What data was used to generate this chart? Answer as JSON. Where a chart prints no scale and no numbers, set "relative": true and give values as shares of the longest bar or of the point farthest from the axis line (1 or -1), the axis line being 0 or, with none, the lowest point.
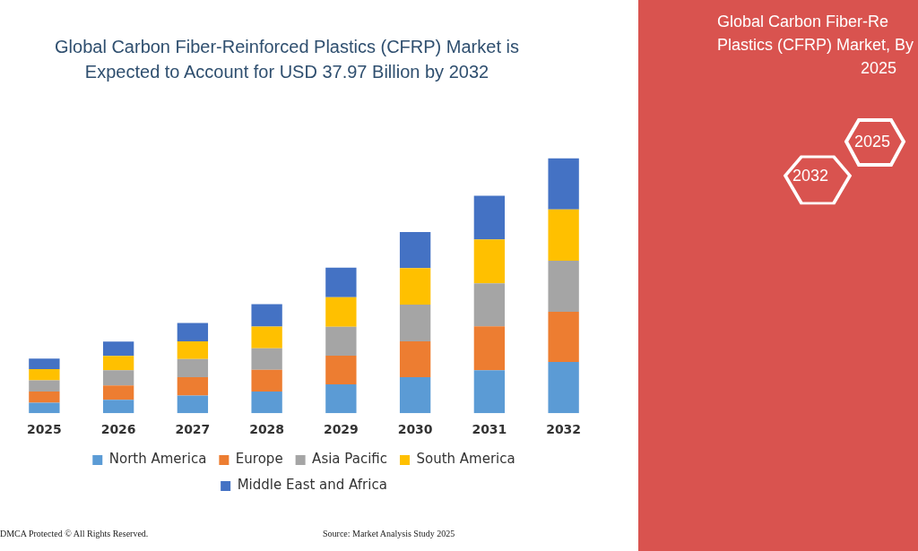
{
  "chart_data": {
    "type": "bar",
    "title": "Global Carbon Fiber-Reinforced Plastics (CFRP) Market is Expected to Account for USD 37.97 Billion by 2032",
    "categories": [
      "2025",
      "2026",
      "2027",
      "2028",
      "2029",
      "2030",
      "2031",
      "2032"
    ],
    "stacked": true,
    "relative": true,
    "legend": "bottom",
    "grid": false,
    "series": [
      {
        "name": "North America",
        "color": "#5b9bd5",
        "values": [
          0.041,
          0.053,
          0.069,
          0.085,
          0.113,
          0.141,
          0.169,
          0.201
        ]
      },
      {
        "name": "Europe",
        "color": "#ed7d31",
        "values": [
          0.044,
          0.056,
          0.072,
          0.085,
          0.113,
          0.141,
          0.172,
          0.197
        ]
      },
      {
        "name": "Asia Pacific",
        "color": "#a5a5a5",
        "values": [
          0.044,
          0.06,
          0.072,
          0.085,
          0.113,
          0.144,
          0.169,
          0.201
        ]
      },
      {
        "name": "South America",
        "color": "#ffc000",
        "values": [
          0.044,
          0.056,
          0.069,
          0.085,
          0.116,
          0.144,
          0.172,
          0.201
        ]
      },
      {
        "name": "Middle East and Africa",
        "color": "#4472c4",
        "values": [
          0.041,
          0.056,
          0.072,
          0.088,
          0.116,
          0.141,
          0.172,
          0.2
        ]
      }
    ],
    "annotations": [
      "DMCA Protected © All Rights Reserved.",
      "Source: Market Analysis Study 2025",
      "Global Carbon Fiber-Re",
      "Plastics (CFRP) Market, By",
      "2025",
      "2025",
      "2032"
    ]
  }
}
